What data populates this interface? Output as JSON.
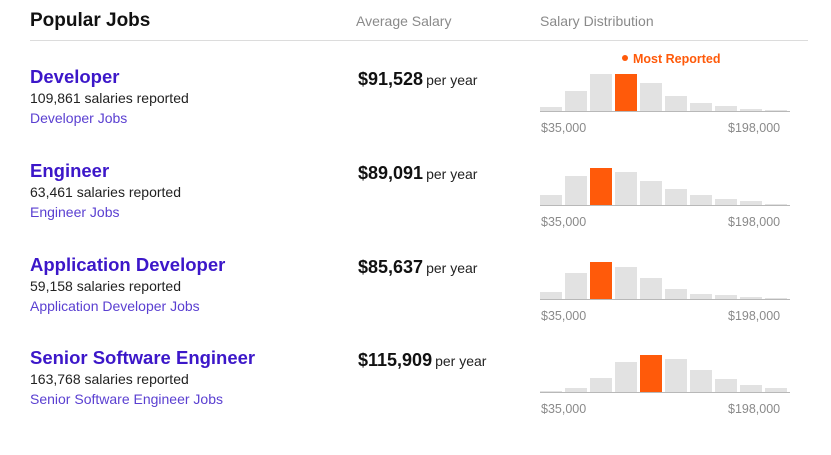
{
  "header": {
    "title": "Popular Jobs",
    "avg_label": "Average Salary",
    "dist_label": "Salary Distribution"
  },
  "most_reported_label": "Most Reported",
  "accent_color": "#ff5a0a",
  "link_color": "#3c17c9",
  "jobs": [
    {
      "title": "Developer",
      "count": "109,861 salaries reported",
      "link": "Developer Jobs",
      "salary": "$91,528",
      "unit": "per year",
      "range_min": "$35,000",
      "range_max": "$198,000",
      "distribution": [
        0.13,
        0.55,
        1.0,
        1.0,
        0.75,
        0.43,
        0.24,
        0.15,
        0.07,
        0.04
      ],
      "most_reported_index": 3
    },
    {
      "title": "Engineer",
      "count": "63,461 salaries reported",
      "link": "Engineer Jobs",
      "salary": "$89,091",
      "unit": "per year",
      "range_min": "$35,000",
      "range_max": "$198,000",
      "distribution": [
        0.3,
        0.78,
        1.0,
        0.9,
        0.67,
        0.44,
        0.29,
        0.19,
        0.12,
        0.05
      ],
      "most_reported_index": 2
    },
    {
      "title": "Application Developer",
      "count": "59,158 salaries reported",
      "link": "Application Developer Jobs",
      "salary": "$85,637",
      "unit": "per year",
      "range_min": "$35,000",
      "range_max": "$198,000",
      "distribution": [
        0.22,
        0.72,
        1.0,
        0.87,
        0.58,
        0.3,
        0.17,
        0.12,
        0.08,
        0.04
      ],
      "most_reported_index": 2
    },
    {
      "title": "Senior Software Engineer",
      "count": "163,768 salaries reported",
      "link": "Senior Software Engineer Jobs",
      "salary": "$115,909",
      "unit": "per year",
      "range_min": "$35,000",
      "range_max": "$198,000",
      "distribution": [
        0.05,
        0.12,
        0.4,
        0.82,
        1.0,
        0.9,
        0.6,
        0.38,
        0.2,
        0.12
      ],
      "most_reported_index": 4
    }
  ]
}
